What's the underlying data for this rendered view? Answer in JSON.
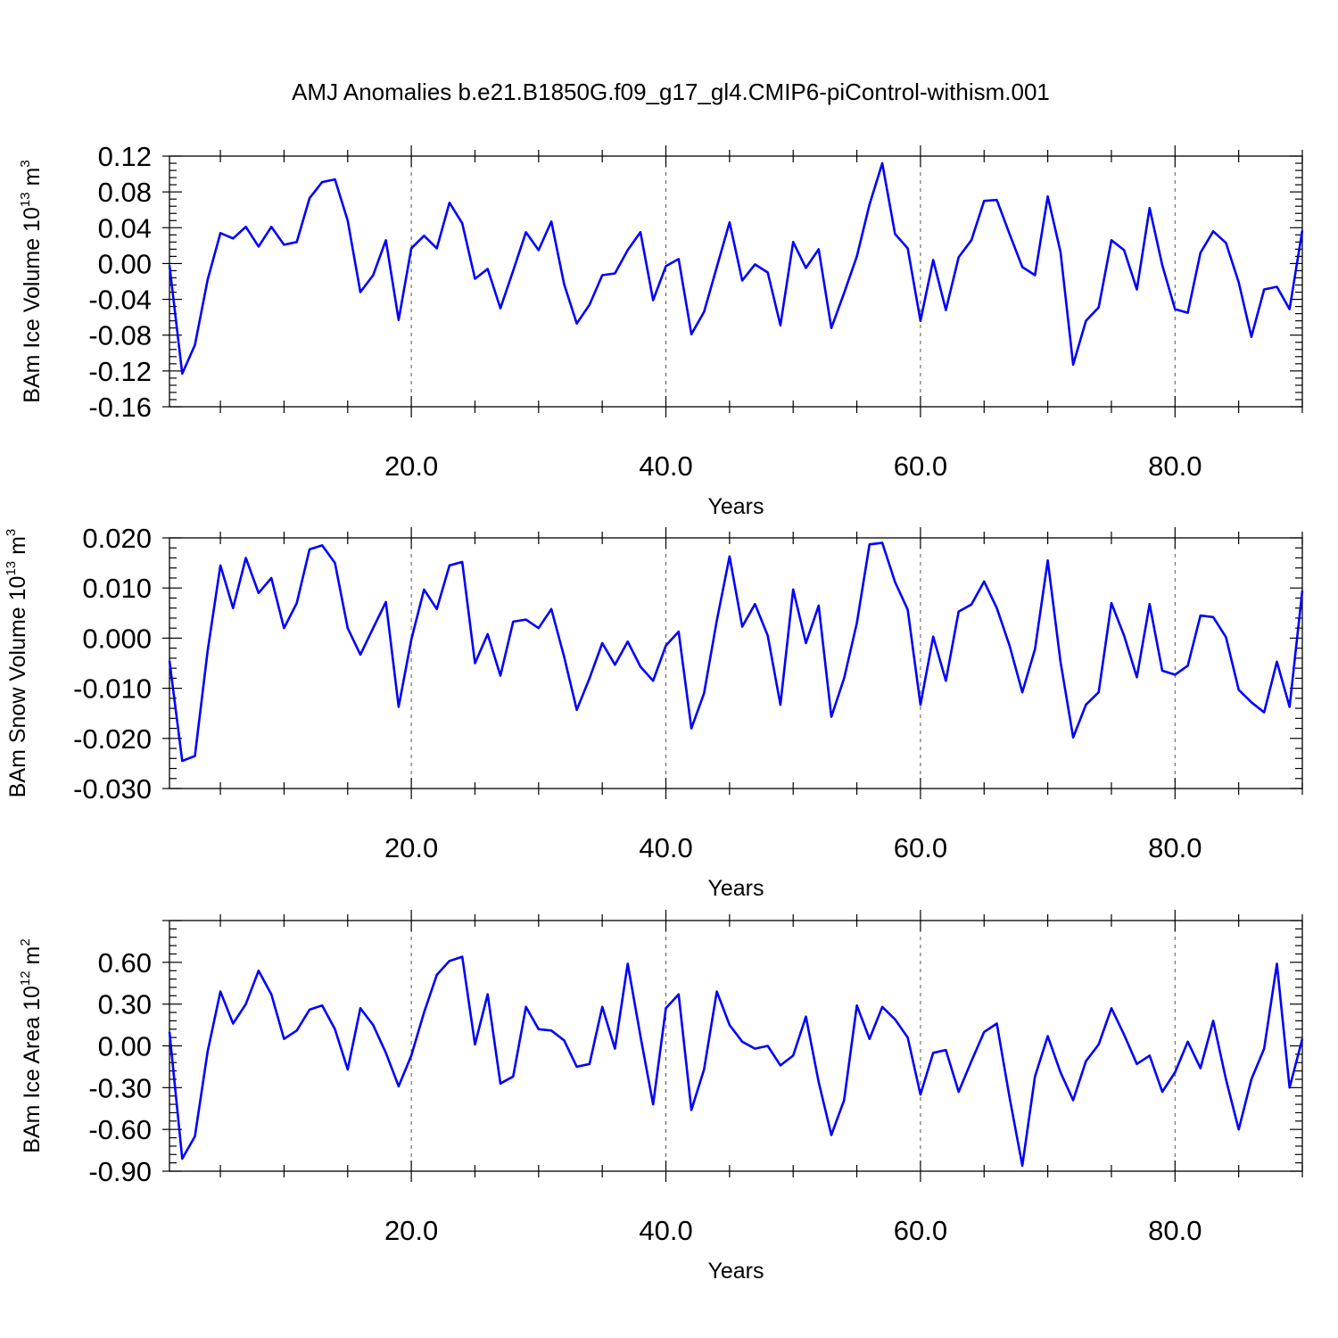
{
  "title": "AMJ Anomalies b.e21.B1850G.f09_g17_gl4.CMIP6-piControl-withism.001",
  "colors": {
    "line": "#0000ff",
    "axis": "#000000",
    "grid": "#555555"
  },
  "chart_data": [
    {
      "type": "line",
      "ylabel": {
        "main": "BAm Ice Volume 10",
        "sup": "13",
        "unit": " m",
        "unit_sup": "3"
      },
      "xlabel": "Years",
      "xlim": [
        1,
        90
      ],
      "ylim": [
        -0.16,
        0.12
      ],
      "xticks": [
        20,
        40,
        60,
        80
      ],
      "xtick_labels": [
        "20.0",
        "40.0",
        "60.0",
        "80.0"
      ],
      "yticks": [
        0.12,
        0.08,
        0.04,
        0.0,
        -0.04,
        -0.08,
        -0.12,
        -0.16
      ],
      "ytick_labels": [
        "0.12",
        "0.08",
        "0.04",
        "0.00",
        "-0.04",
        "-0.08",
        "-0.12",
        "-0.16"
      ],
      "grid": "dashed vertical at x ticks",
      "series": [
        {
          "x": [
            1,
            2,
            3,
            4,
            5,
            6,
            7,
            8,
            9,
            10,
            11,
            12,
            13,
            14,
            15,
            16,
            17,
            18,
            19,
            20,
            21,
            22,
            23,
            24,
            25,
            26,
            27,
            28,
            29,
            30,
            31,
            32,
            33,
            34,
            35,
            36,
            37,
            38,
            39,
            40,
            41,
            42,
            43,
            44,
            45,
            46,
            47,
            48,
            49,
            50,
            51,
            52,
            53,
            54,
            55,
            56,
            57,
            58,
            59,
            60,
            61,
            62,
            63,
            64,
            65,
            66,
            67,
            68,
            69,
            70,
            71,
            72,
            73,
            74,
            75,
            76,
            77,
            78,
            79,
            80,
            81,
            82,
            83,
            84,
            85,
            86,
            87,
            88,
            89,
            90
          ],
          "values": [
            -0.002,
            -0.123,
            -0.091,
            -0.018,
            0.034,
            0.028,
            0.041,
            0.019,
            0.041,
            0.021,
            0.024,
            0.073,
            0.091,
            0.094,
            0.048,
            -0.032,
            -0.013,
            0.026,
            -0.063,
            0.017,
            0.031,
            0.017,
            0.068,
            0.045,
            -0.017,
            -0.006,
            -0.05,
            -0.008,
            0.035,
            0.015,
            0.047,
            -0.023,
            -0.067,
            -0.046,
            -0.013,
            -0.011,
            0.015,
            0.035,
            -0.041,
            -0.003,
            0.005,
            -0.079,
            -0.054,
            -0.004,
            0.046,
            -0.019,
            -0.001,
            -0.01,
            -0.069,
            0.024,
            -0.005,
            0.016,
            -0.072,
            -0.033,
            0.008,
            0.066,
            0.112,
            0.033,
            0.017,
            -0.064,
            0.004,
            -0.052,
            0.007,
            0.026,
            0.07,
            0.071,
            0.033,
            -0.004,
            -0.013,
            0.075,
            0.013,
            -0.113,
            -0.064,
            -0.049,
            0.026,
            0.015,
            -0.029,
            0.062,
            -0.002,
            -0.051,
            -0.055,
            0.012,
            0.036,
            0.023,
            -0.021,
            -0.082,
            -0.029,
            -0.026,
            -0.051,
            0.037
          ]
        }
      ]
    },
    {
      "type": "line",
      "ylabel": {
        "main": "BAm Snow Volume 10",
        "sup": "13",
        "unit": " m",
        "unit_sup": "3"
      },
      "xlabel": "Years",
      "xlim": [
        1,
        90
      ],
      "ylim": [
        -0.03,
        0.02
      ],
      "xticks": [
        20,
        40,
        60,
        80
      ],
      "xtick_labels": [
        "20.0",
        "40.0",
        "60.0",
        "80.0"
      ],
      "yticks": [
        0.02,
        0.01,
        0.0,
        -0.01,
        -0.02,
        -0.03
      ],
      "ytick_labels": [
        "0.020",
        "0.010",
        "0.000",
        "-0.010",
        "-0.020",
        "-0.030"
      ],
      "grid": "dashed vertical at x ticks",
      "series": [
        {
          "x": [
            1,
            2,
            3,
            4,
            5,
            6,
            7,
            8,
            9,
            10,
            11,
            12,
            13,
            14,
            15,
            16,
            17,
            18,
            19,
            20,
            21,
            22,
            23,
            24,
            25,
            26,
            27,
            28,
            29,
            30,
            31,
            32,
            33,
            34,
            35,
            36,
            37,
            38,
            39,
            40,
            41,
            42,
            43,
            44,
            45,
            46,
            47,
            48,
            49,
            50,
            51,
            52,
            53,
            54,
            55,
            56,
            57,
            58,
            59,
            60,
            61,
            62,
            63,
            64,
            65,
            66,
            67,
            68,
            69,
            70,
            71,
            72,
            73,
            74,
            75,
            76,
            77,
            78,
            79,
            80,
            81,
            82,
            83,
            84,
            85,
            86,
            87,
            88,
            89,
            90
          ],
          "values": [
            -0.0045,
            -0.0245,
            -0.0235,
            -0.0025,
            0.0145,
            0.006,
            0.016,
            0.009,
            0.012,
            0.002,
            0.007,
            0.0177,
            0.0185,
            0.015,
            0.002,
            -0.0033,
            0.002,
            0.0072,
            -0.0137,
            -0.0003,
            0.0097,
            0.0058,
            0.0145,
            0.0152,
            -0.005,
            0.0008,
            -0.0075,
            0.0033,
            0.0037,
            0.002,
            0.0058,
            -0.0037,
            -0.0143,
            -0.008,
            -0.001,
            -0.0053,
            -0.0007,
            -0.0057,
            -0.0085,
            -0.0015,
            0.0013,
            -0.018,
            -0.011,
            0.0035,
            0.0163,
            0.0023,
            0.0068,
            0.0005,
            -0.0133,
            0.0097,
            -0.001,
            0.0065,
            -0.0157,
            -0.008,
            0.003,
            0.0187,
            0.019,
            0.0112,
            0.0057,
            -0.0133,
            0.0003,
            -0.0085,
            0.0053,
            0.0067,
            0.0113,
            0.006,
            -0.0015,
            -0.0108,
            -0.0022,
            0.0155,
            -0.0047,
            -0.0198,
            -0.0133,
            -0.0108,
            0.007,
            0.0005,
            -0.0078,
            0.0068,
            -0.0065,
            -0.0073,
            -0.0055,
            0.0045,
            0.0042,
            0.0002,
            -0.0103,
            -0.0128,
            -0.0148,
            -0.0047,
            -0.0137,
            0.0095
          ]
        }
      ]
    },
    {
      "type": "line",
      "ylabel": {
        "main": "BAm Ice Area 10",
        "sup": "12",
        "unit": " m",
        "unit_sup": "2"
      },
      "xlabel": "Years",
      "xlim": [
        1,
        90
      ],
      "ylim": [
        -0.9,
        0.9
      ],
      "xticks": [
        20,
        40,
        60,
        80
      ],
      "xtick_labels": [
        "20.0",
        "40.0",
        "60.0",
        "80.0"
      ],
      "yticks": [
        0.6,
        0.3,
        0.0,
        -0.3,
        -0.6,
        -0.9
      ],
      "ytick_labels": [
        "0.60",
        "0.30",
        "0.00",
        "-0.30",
        "-0.60",
        "-0.90"
      ],
      "grid": "dashed vertical at x ticks",
      "series": [
        {
          "x": [
            1,
            2,
            3,
            4,
            5,
            6,
            7,
            8,
            9,
            10,
            11,
            12,
            13,
            14,
            15,
            16,
            17,
            18,
            19,
            20,
            21,
            22,
            23,
            24,
            25,
            26,
            27,
            28,
            29,
            30,
            31,
            32,
            33,
            34,
            35,
            36,
            37,
            38,
            39,
            40,
            41,
            42,
            43,
            44,
            45,
            46,
            47,
            48,
            49,
            50,
            51,
            52,
            53,
            54,
            55,
            56,
            57,
            58,
            59,
            60,
            61,
            62,
            63,
            64,
            65,
            66,
            67,
            68,
            69,
            70,
            71,
            72,
            73,
            74,
            75,
            76,
            77,
            78,
            79,
            80,
            81,
            82,
            83,
            84,
            85,
            86,
            87,
            88,
            89,
            90
          ],
          "values": [
            0.1,
            -0.81,
            -0.65,
            -0.04,
            0.39,
            0.16,
            0.3,
            0.54,
            0.37,
            0.05,
            0.11,
            0.26,
            0.29,
            0.12,
            -0.17,
            0.27,
            0.15,
            -0.05,
            -0.29,
            -0.07,
            0.24,
            0.51,
            0.61,
            0.64,
            0.01,
            0.37,
            -0.27,
            -0.22,
            0.28,
            0.12,
            0.11,
            0.04,
            -0.15,
            -0.13,
            0.28,
            -0.02,
            0.59,
            0.07,
            -0.42,
            0.27,
            0.37,
            -0.46,
            -0.17,
            0.39,
            0.15,
            0.03,
            -0.02,
            0.0,
            -0.14,
            -0.07,
            0.21,
            -0.26,
            -0.64,
            -0.39,
            0.29,
            0.05,
            0.28,
            0.19,
            0.06,
            -0.35,
            -0.05,
            -0.03,
            -0.33,
            -0.11,
            0.1,
            0.16,
            -0.37,
            -0.86,
            -0.22,
            0.07,
            -0.19,
            -0.39,
            -0.11,
            0.01,
            0.27,
            0.08,
            -0.13,
            -0.07,
            -0.33,
            -0.19,
            0.03,
            -0.16,
            0.18,
            -0.24,
            -0.6,
            -0.24,
            -0.02,
            0.59,
            -0.3,
            0.05
          ]
        }
      ]
    }
  ]
}
